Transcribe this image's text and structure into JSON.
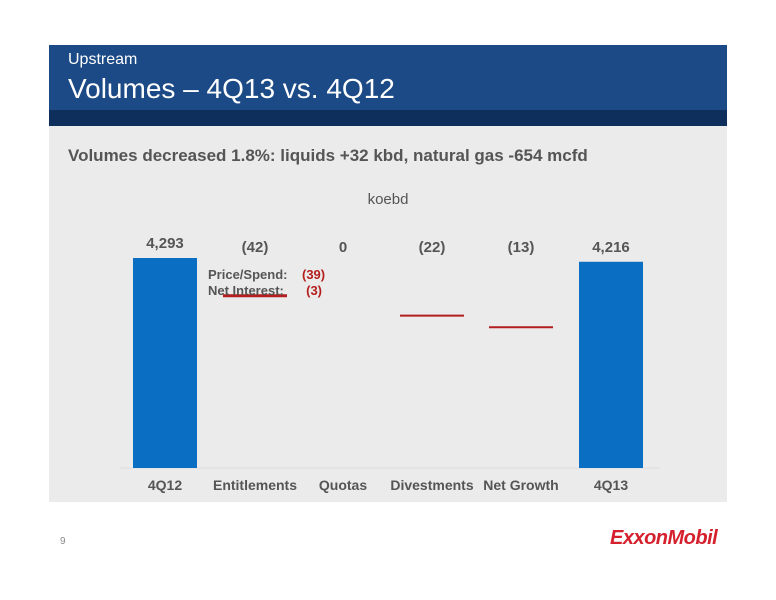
{
  "header": {
    "section": "Upstream",
    "title": "Volumes – 4Q13 vs. 4Q12"
  },
  "subtitle": "Volumes decreased 1.8%: liquids +32 kbd, natural gas -654 mcfd",
  "unit": "koebd",
  "chart_data": {
    "type": "bar",
    "subtype": "waterfall",
    "categories": [
      "4Q12",
      "Entitlements",
      "Quotas",
      "Divestments",
      "Net Growth",
      "4Q13"
    ],
    "values": [
      4293,
      -42,
      0,
      -22,
      -13,
      4216
    ],
    "value_labels": [
      "4,293",
      "(42)",
      "0",
      "(22)",
      "(13)",
      "4,216"
    ],
    "bar_kinds": [
      "total",
      "change",
      "change",
      "change",
      "change",
      "total"
    ],
    "annotations": [
      {
        "label": "Price/Spend:",
        "value": "(39)"
      },
      {
        "label": "Net Interest:",
        "value": "(3)"
      }
    ],
    "colors": {
      "total": "#0a6fc2",
      "decrease": "#b41e1e"
    }
  },
  "footer": {
    "page_number": "9",
    "logo_text": "ExxonMobil"
  }
}
